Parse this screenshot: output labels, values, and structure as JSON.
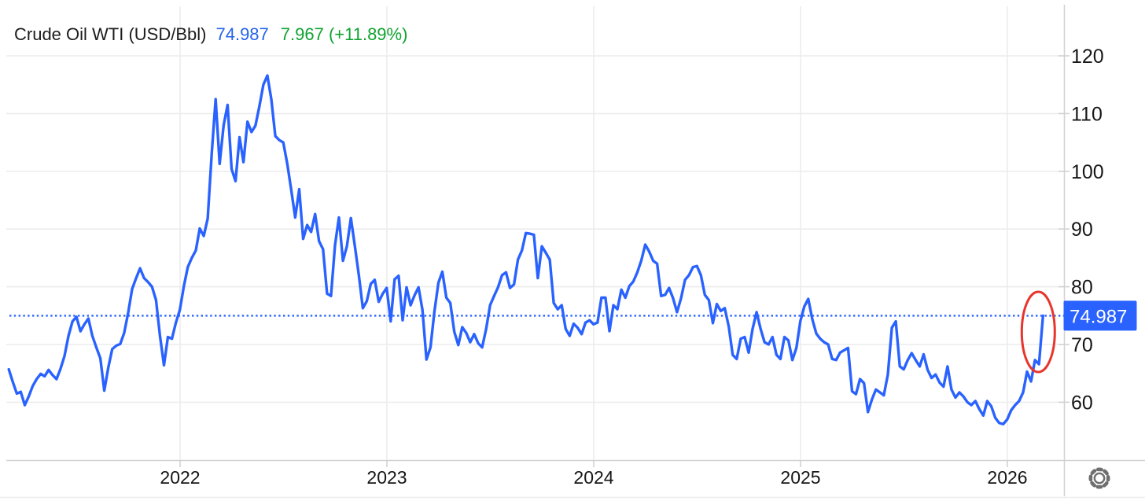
{
  "header": {
    "title": "Crude Oil WTI (USD/Bbl)",
    "price": "74.987",
    "change": "7.967 (+11.89%)"
  },
  "colors": {
    "line_blue": "#2962ff",
    "price_blue": "#2563eb",
    "change_green": "#0fa330",
    "annotation_red": "#e8352c",
    "grid": "#ececec",
    "axis": "#d2d2d2",
    "label": "#161616",
    "gear_gray": "#6f6f6f"
  },
  "price_badge": {
    "label": "74.987"
  },
  "settings": {
    "gear_icon": "gear-icon"
  },
  "chart_data": {
    "type": "line",
    "title": "Crude Oil WTI (USD/Bbl)",
    "series_name": "WTI crude oil price (USD/Bbl), weekly",
    "last_price": 74.987,
    "change_abs": 7.967,
    "change_pct": "+11.89%",
    "grid": "on",
    "legend_position": "none",
    "x_ticks": [
      2022,
      2023,
      2024,
      2025,
      2026
    ],
    "x_tick_labels": [
      "2022",
      "2023",
      "2024",
      "2025",
      "2026"
    ],
    "y_ticks": [
      120,
      110,
      100,
      90,
      80,
      70,
      60
    ],
    "y_tick_labels": [
      "120",
      "110",
      "100",
      "90",
      "80",
      "70",
      "60"
    ],
    "ylim": [
      53,
      124
    ],
    "xlim": [
      2021.15,
      2026.27
    ],
    "t_start": 2021.172,
    "t_step": 0.019231,
    "values": [
      65.7,
      63.5,
      61.5,
      61.8,
      59.5,
      61.0,
      62.8,
      64.0,
      64.9,
      64.5,
      65.6,
      64.7,
      64.0,
      65.8,
      68.0,
      71.5,
      74.0,
      74.8,
      72.3,
      73.5,
      74.5,
      71.5,
      69.5,
      67.6,
      62.0,
      66.0,
      69.2,
      69.8,
      70.1,
      72.0,
      75.5,
      79.6,
      81.5,
      83.2,
      81.5,
      80.8,
      80.0,
      77.7,
      71.5,
      66.4,
      71.3,
      71.0,
      73.8,
      76.0,
      80.1,
      83.4,
      85.0,
      86.3,
      90.1,
      88.8,
      91.8,
      103.0,
      112.5,
      101.3,
      108.0,
      111.5,
      100.4,
      98.3,
      105.9,
      101.6,
      108.6,
      106.8,
      107.9,
      111.3,
      115.0,
      116.6,
      112.5,
      106.1,
      105.4,
      105.0,
      101.3,
      96.8,
      92.0,
      96.9,
      88.3,
      90.7,
      89.5,
      92.6,
      87.9,
      86.5,
      78.8,
      78.4,
      87.2,
      92.0,
      84.5,
      87.0,
      91.9,
      87.0,
      82.0,
      76.3,
      77.5,
      80.5,
      81.2,
      77.4,
      78.8,
      79.8,
      74.0,
      81.3,
      81.9,
      74.2,
      79.9,
      76.8,
      78.5,
      79.9,
      76.0,
      67.4,
      69.5,
      75.7,
      80.7,
      82.6,
      78.1,
      77.2,
      72.2,
      69.9,
      73.0,
      72.0,
      70.4,
      71.8,
      70.2,
      69.5,
      72.7,
      76.8,
      78.4,
      79.9,
      82.0,
      82.5,
      79.8,
      80.4,
      84.7,
      86.3,
      89.3,
      89.2,
      89.0,
      81.5,
      87.0,
      85.9,
      84.7,
      77.2,
      76.1,
      76.8,
      72.7,
      71.5,
      73.6,
      72.9,
      71.8,
      73.8,
      74.2,
      73.5,
      73.8,
      78.1,
      78.1,
      72.3,
      76.8,
      76.1,
      79.5,
      78.1,
      80.1,
      80.9,
      82.5,
      84.5,
      87.3,
      86.1,
      84.5,
      84.0,
      78.4,
      78.6,
      79.8,
      78.0,
      75.6,
      78.0,
      81.2,
      82.0,
      83.4,
      83.6,
      82.0,
      78.6,
      77.7,
      73.7,
      77.0,
      75.8,
      76.3,
      73.1,
      68.2,
      67.5,
      71.0,
      71.3,
      68.6,
      72.7,
      75.6,
      72.7,
      70.4,
      70.0,
      71.3,
      68.2,
      67.5,
      71.3,
      70.7,
      67.3,
      69.4,
      74.0,
      76.6,
      77.9,
      74.4,
      71.9,
      71.0,
      70.4,
      70.0,
      67.5,
      67.3,
      68.6,
      69.0,
      69.4,
      61.9,
      61.4,
      64.0,
      63.3,
      58.3,
      60.5,
      62.2,
      61.7,
      61.2,
      64.8,
      72.9,
      74.0,
      66.2,
      65.7,
      67.3,
      68.5,
      67.3,
      66.2,
      68.3,
      65.6,
      64.2,
      64.8,
      63.4,
      62.7,
      66.2,
      62.2,
      60.8,
      61.7,
      61.0,
      60.0,
      59.5,
      60.2,
      58.8,
      57.7,
      60.2,
      59.3,
      57.3,
      56.4,
      56.2,
      57.0,
      58.6,
      59.5,
      60.2,
      61.7,
      65.3,
      63.6,
      67.3,
      66.6,
      74.987
    ],
    "annotations": [
      {
        "type": "ellipse-highlight",
        "note": "red circle around final spike to 74.987"
      },
      {
        "type": "dotted-last-price-line",
        "value": 74.987
      }
    ]
  }
}
